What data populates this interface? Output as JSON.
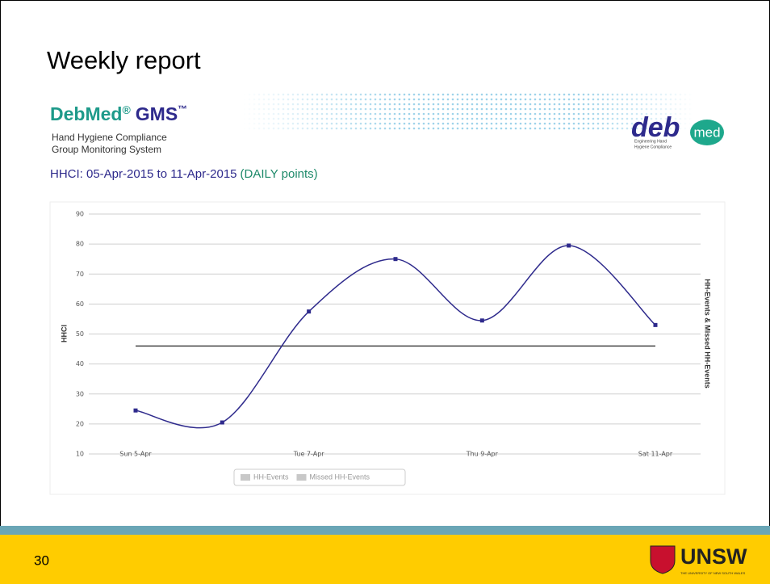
{
  "slide": {
    "title": "Weekly report",
    "page_number": "30",
    "brand": {
      "name": "DebMed",
      "reg": "®",
      "product": "GMS",
      "tm": "™",
      "lines": [
        "Hand Hygiene Compliance",
        "Group Monitoring System"
      ],
      "logo": [
        "deb",
        "med"
      ],
      "logo_caption": [
        "Engineering Hand",
        "Hygiene Compliance"
      ]
    },
    "report": {
      "range": "HHCI: 05-Apr-2015 to 11-Apr-2015",
      "mode": "(DAILY points)"
    },
    "university": {
      "name": "UNSW",
      "caption": "THE UNIVERSITY OF NEW SOUTH WALES"
    }
  },
  "chart_data": {
    "type": "line",
    "categories": [
      "Sun 5-Apr",
      null,
      "Tue 7-Apr",
      null,
      "Thu 9-Apr",
      null,
      "Sat 11-Apr"
    ],
    "series": [
      {
        "name": "HHCI",
        "color": "#2e2a8c",
        "values": [
          24.5,
          20.5,
          57.5,
          75,
          54.5,
          79.5,
          53
        ]
      }
    ],
    "reference_line": 46,
    "reference_color": "#444444",
    "ylim": [
      10,
      90
    ],
    "yticks": [
      10,
      20,
      30,
      40,
      50,
      60,
      70,
      80,
      90
    ],
    "grid": true,
    "ylabel": "HHCI",
    "y2label": "HH-Events & Missed HH-Events",
    "legend": [
      "HH-Events",
      "Missed HH-Events"
    ],
    "legend_position": "bottom"
  }
}
